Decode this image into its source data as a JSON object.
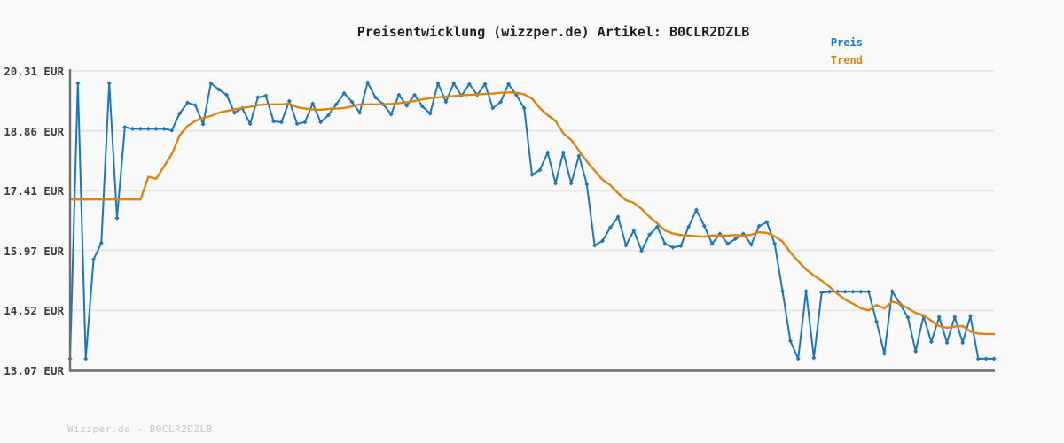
{
  "title": "Preisentwicklung (wizzper.de) Artikel: B0CLR2DZLB",
  "watermark": "Wizzper.de - B0CLR2DZLB",
  "legend": {
    "price_label": "Preis",
    "trend_label": "Trend",
    "position": "top-right"
  },
  "colors": {
    "price": "#1b76bc",
    "trend": "#dd830e",
    "grid": "#e7e7e7",
    "axis": "#6e6e6e",
    "title_text": "#1f1f1f",
    "tick_text": "#3d3d3d",
    "watermark_text": "#c8c8c8",
    "background": "#f9f9f9"
  },
  "chart_data": {
    "type": "line",
    "title": "Preisentwicklung (wizzper.de) Artikel: B0CLR2DZLB",
    "xlabel": "",
    "ylabel": "",
    "unit": "EUR",
    "grid": true,
    "legend_position": "top-right",
    "ylim": [
      13.07,
      20.31
    ],
    "y_ticks": [
      "20.31 EUR",
      "18.86 EUR",
      "17.41 EUR",
      "15.97 EUR",
      "14.52 EUR",
      "13.07 EUR"
    ],
    "y_tick_values": [
      20.31,
      18.86,
      17.41,
      15.97,
      14.52,
      13.07
    ],
    "x_tick_labels": [],
    "n_points": 119,
    "series": [
      {
        "name": "Preis",
        "color": "#1b76bc",
        "marker": "diamond",
        "values": [
          13.35,
          20.01,
          13.35,
          15.75,
          16.15,
          20.01,
          16.75,
          18.95,
          18.91,
          18.91,
          18.91,
          18.91,
          18.91,
          18.87,
          19.28,
          19.54,
          19.48,
          19.02,
          20.01,
          19.86,
          19.73,
          19.3,
          19.41,
          19.03,
          19.67,
          19.71,
          19.09,
          19.07,
          19.58,
          19.03,
          19.07,
          19.52,
          19.07,
          19.24,
          19.5,
          19.77,
          19.56,
          19.3,
          20.03,
          19.67,
          19.5,
          19.26,
          19.73,
          19.47,
          19.73,
          19.45,
          19.28,
          20.01,
          19.56,
          20.01,
          19.71,
          19.99,
          19.73,
          19.99,
          19.41,
          19.56,
          19.99,
          19.73,
          19.41,
          17.8,
          17.91,
          18.34,
          17.59,
          18.34,
          17.59,
          18.26,
          17.57,
          16.09,
          16.2,
          16.52,
          16.78,
          16.09,
          16.45,
          15.96,
          16.35,
          16.54,
          16.13,
          16.04,
          16.08,
          16.54,
          16.95,
          16.56,
          16.13,
          16.37,
          16.13,
          16.25,
          16.37,
          16.11,
          16.56,
          16.65,
          16.13,
          14.98,
          13.78,
          13.35,
          14.98,
          13.37,
          14.95,
          14.97,
          14.97,
          14.97,
          14.97,
          14.97,
          14.97,
          14.25,
          13.47,
          14.98,
          14.68,
          14.35,
          13.53,
          14.38,
          13.76,
          14.36,
          13.74,
          14.36,
          13.74,
          14.38,
          13.35,
          13.35,
          13.35
        ]
      },
      {
        "name": "Trend",
        "color": "#dd830e",
        "marker": "none",
        "values": [
          17.2,
          17.2,
          17.2,
          17.2,
          17.2,
          17.2,
          17.2,
          17.2,
          17.2,
          17.2,
          17.75,
          17.7,
          18.0,
          18.3,
          18.75,
          18.98,
          19.1,
          19.17,
          19.22,
          19.3,
          19.34,
          19.38,
          19.41,
          19.44,
          19.48,
          19.5,
          19.5,
          19.5,
          19.52,
          19.43,
          19.4,
          19.38,
          19.37,
          19.39,
          19.4,
          19.41,
          19.45,
          19.5,
          19.5,
          19.5,
          19.5,
          19.51,
          19.53,
          19.55,
          19.58,
          19.62,
          19.65,
          19.67,
          19.69,
          19.7,
          19.72,
          19.73,
          19.74,
          19.75,
          19.76,
          19.78,
          19.79,
          19.78,
          19.74,
          19.64,
          19.41,
          19.24,
          19.1,
          18.8,
          18.64,
          18.38,
          18.12,
          17.9,
          17.68,
          17.55,
          17.35,
          17.18,
          17.12,
          16.97,
          16.78,
          16.62,
          16.45,
          16.38,
          16.34,
          16.33,
          16.31,
          16.3,
          16.33,
          16.33,
          16.33,
          16.34,
          16.33,
          16.35,
          16.41,
          16.39,
          16.31,
          16.18,
          15.92,
          15.71,
          15.51,
          15.36,
          15.24,
          15.09,
          14.92,
          14.78,
          14.68,
          14.57,
          14.52,
          14.65,
          14.57,
          14.73,
          14.68,
          14.57,
          14.46,
          14.4,
          14.27,
          14.14,
          14.1,
          14.13,
          14.14,
          14.01,
          13.96,
          13.95,
          13.95
        ]
      }
    ]
  }
}
